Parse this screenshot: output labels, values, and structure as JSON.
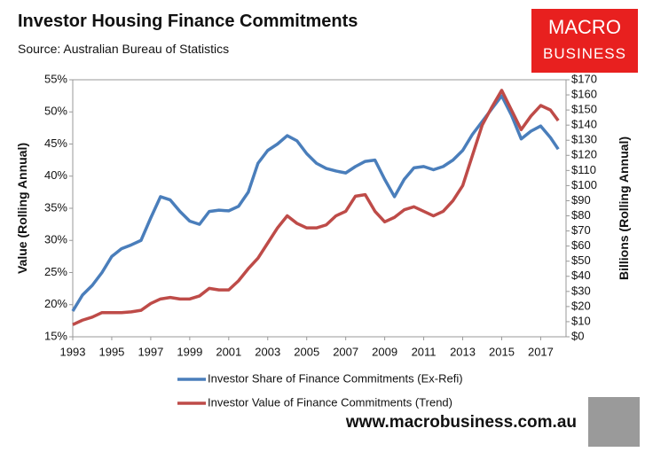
{
  "chart_data": {
    "type": "line",
    "title": "Investor Housing Finance Commitments",
    "subtitle": "Source: Australian Bureau of Statistics",
    "ylabel": "Value (Rolling Annual)",
    "y2label": "Billions (Rolling Annual)",
    "logo": [
      "MACRO",
      "BUSINESS"
    ],
    "footer": "www.macrobusiness.com.au",
    "grid": false,
    "xlim": [
      1993,
      2018.3
    ],
    "xticks": [
      1993,
      1995,
      1997,
      1999,
      2001,
      2003,
      2005,
      2007,
      2009,
      2011,
      2013,
      2015,
      2017
    ],
    "ylim": [
      15,
      55
    ],
    "yticks": [
      {
        "value": 15,
        "label": "15%"
      },
      {
        "value": 20,
        "label": "20%"
      },
      {
        "value": 25,
        "label": "25%"
      },
      {
        "value": 30,
        "label": "30%"
      },
      {
        "value": 35,
        "label": "35%"
      },
      {
        "value": 40,
        "label": "40%"
      },
      {
        "value": 45,
        "label": "45%"
      },
      {
        "value": 50,
        "label": "50%"
      },
      {
        "value": 55,
        "label": "55%"
      }
    ],
    "y2lim": [
      0,
      170
    ],
    "y2ticks": [
      {
        "value": 0,
        "label": "$0"
      },
      {
        "value": 10,
        "label": "$10"
      },
      {
        "value": 20,
        "label": "$20"
      },
      {
        "value": 30,
        "label": "$30"
      },
      {
        "value": 40,
        "label": "$40"
      },
      {
        "value": 50,
        "label": "$50"
      },
      {
        "value": 60,
        "label": "$60"
      },
      {
        "value": 70,
        "label": "$70"
      },
      {
        "value": 80,
        "label": "$80"
      },
      {
        "value": 90,
        "label": "$90"
      },
      {
        "value": 100,
        "label": "$100"
      },
      {
        "value": 110,
        "label": "$110"
      },
      {
        "value": 120,
        "label": "$120"
      },
      {
        "value": 130,
        "label": "$130"
      },
      {
        "value": 140,
        "label": "$140"
      },
      {
        "value": 150,
        "label": "$150"
      },
      {
        "value": 160,
        "label": "$160"
      },
      {
        "value": 170,
        "label": "$170"
      }
    ],
    "x": [
      1993.0,
      1993.5,
      1994.0,
      1994.5,
      1995.0,
      1995.5,
      1996.0,
      1996.5,
      1997.0,
      1997.5,
      1998.0,
      1998.5,
      1999.0,
      1999.5,
      2000.0,
      2000.5,
      2001.0,
      2001.5,
      2002.0,
      2002.5,
      2003.0,
      2003.5,
      2004.0,
      2004.5,
      2005.0,
      2005.5,
      2006.0,
      2006.5,
      2007.0,
      2007.5,
      2008.0,
      2008.5,
      2009.0,
      2009.5,
      2010.0,
      2010.5,
      2011.0,
      2011.5,
      2012.0,
      2012.5,
      2013.0,
      2013.5,
      2014.0,
      2014.5,
      2015.0,
      2015.5,
      2016.0,
      2016.5,
      2017.0,
      2017.5,
      2017.9
    ],
    "series": [
      {
        "name": "Investor Share of Finance Commitments (Ex-Refi)",
        "color": "#4a7ebb",
        "values": [
          19,
          21.5,
          23,
          25,
          27.5,
          28.7,
          29.3,
          30,
          33.5,
          36.8,
          36.3,
          34.5,
          33,
          32.5,
          34.5,
          34.7,
          34.6,
          35.3,
          37.5,
          42,
          44,
          45,
          46.3,
          45.5,
          43.5,
          42,
          41.2,
          40.8,
          40.5,
          41.5,
          42.3,
          42.5,
          39.5,
          36.8,
          39.5,
          41.3,
          41.5,
          41,
          41.5,
          42.5,
          44,
          46.5,
          48.5,
          50.5,
          52.5,
          49.5,
          45.8,
          47,
          47.8,
          46,
          44.2
        ]
      },
      {
        "name": "Investor Value of Finance Commitments (Trend)",
        "color": "#be4b48",
        "axis": "y2",
        "values": [
          8,
          11,
          13,
          16,
          16,
          16,
          16.5,
          17.5,
          22,
          25,
          26,
          25,
          25,
          27,
          32,
          31,
          31,
          37,
          45,
          52,
          62,
          72,
          80,
          75,
          72,
          72,
          74,
          80,
          83,
          93,
          94,
          83,
          76,
          79,
          84,
          86,
          83,
          80,
          83,
          90,
          100,
          120,
          140,
          152,
          163,
          150,
          137,
          146,
          153,
          150,
          143
        ]
      }
    ]
  }
}
